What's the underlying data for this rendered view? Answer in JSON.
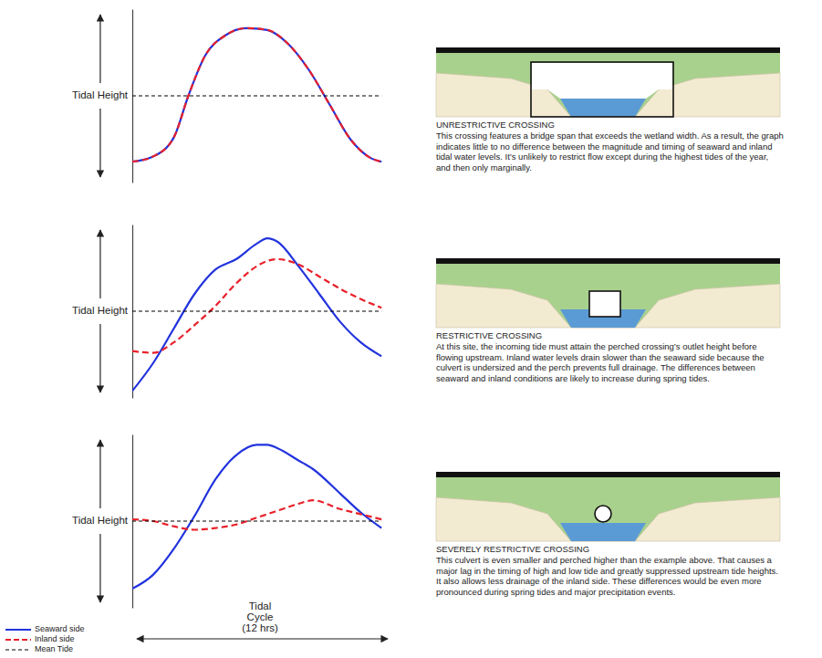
{
  "chart_data": [
    {
      "type": "line",
      "ylabel": "Tidal Height",
      "xlim": [
        0,
        12.3
      ],
      "ylim": [
        -5,
        5
      ],
      "tick_labels": false,
      "x": [
        0,
        1,
        2,
        2.7,
        3.5,
        4.5,
        5.5,
        6.5,
        7.5,
        8.5,
        9.5,
        10.5,
        11.5,
        12
      ],
      "series": [
        {
          "color": "#2233dd",
          "line_style": "solid",
          "values": [
            -3.8,
            -3.5,
            -2.4,
            0,
            2.3,
            3.5,
            3.9,
            3.8,
            3.0,
            1.5,
            -0.5,
            -2.5,
            -3.6,
            -3.8
          ]
        },
        {
          "color": "#e8202a",
          "line_style": "dashed",
          "values": [
            -3.8,
            -3.5,
            -2.4,
            0,
            2.3,
            3.5,
            3.9,
            3.8,
            3.0,
            1.5,
            -0.5,
            -2.5,
            -3.6,
            -3.8
          ]
        },
        {
          "color": "#000000",
          "line_style": "dashed",
          "values": [
            0,
            0,
            0,
            0,
            0,
            0,
            0,
            0,
            0,
            0,
            0,
            0,
            0,
            0
          ]
        }
      ]
    },
    {
      "type": "line",
      "ylabel": "Tidal Height",
      "xlim": [
        0,
        12.3
      ],
      "ylim": [
        -5,
        5
      ],
      "tick_labels": false,
      "x": [
        0,
        1,
        2,
        3,
        4,
        5,
        6,
        6.5,
        7,
        8,
        9,
        10,
        11,
        12
      ],
      "series": [
        {
          "color": "#2233dd",
          "line_style": "solid",
          "values": [
            -4.6,
            -3.0,
            -1.0,
            1.0,
            2.4,
            3.0,
            3.9,
            4.2,
            4.0,
            2.6,
            1.0,
            -0.6,
            -1.8,
            -2.6
          ]
        },
        {
          "color": "#e8202a",
          "line_style": "dashed",
          "values": [
            -2.3,
            -2.4,
            -1.8,
            -0.8,
            0.3,
            1.6,
            2.6,
            2.9,
            3.0,
            2.7,
            2.0,
            1.3,
            0.7,
            0.2
          ]
        },
        {
          "color": "#000000",
          "line_style": "dashed",
          "values": [
            0,
            0,
            0,
            0,
            0,
            0,
            0,
            0,
            0,
            0,
            0,
            0,
            0,
            0
          ]
        }
      ]
    },
    {
      "type": "line",
      "ylabel": "Tidal Height",
      "xlabel": "Tidal Cycle (12 hrs)",
      "legend": "bottom-left",
      "xlim": [
        0,
        12.3
      ],
      "ylim": [
        -5,
        5
      ],
      "tick_labels": false,
      "x": [
        0,
        1,
        2,
        3,
        4,
        5,
        6,
        6.5,
        7,
        8,
        8.7,
        10,
        11,
        12
      ],
      "series": [
        {
          "name": "Seaward side",
          "color": "#2233dd",
          "line_style": "solid",
          "values": [
            -3.9,
            -3.1,
            -1.6,
            0.3,
            2.4,
            3.8,
            4.4,
            4.4,
            4.2,
            3.5,
            3.0,
            1.6,
            0.5,
            -0.4
          ]
        },
        {
          "name": "Inland side",
          "color": "#e8202a",
          "line_style": "dashed",
          "values": [
            0.1,
            0.0,
            -0.3,
            -0.5,
            -0.4,
            -0.2,
            0.2,
            0.4,
            0.6,
            1.0,
            1.2,
            0.7,
            0.4,
            0.1
          ]
        },
        {
          "name": "Mean Tide",
          "color": "#000000",
          "line_style": "dashed",
          "values": [
            0,
            0,
            0,
            0,
            0,
            0,
            0,
            0,
            0,
            0,
            0,
            0,
            0,
            0
          ]
        }
      ]
    }
  ],
  "crossings": [
    {
      "title": "UNRESTRICTIVE CROSSING",
      "text": "This crossing features a bridge span that exceeds the wetland width. As a result, the graph indicates little to no difference between the magnitude and timing of seaward and inland tidal water levels. It’s unlikely to restrict flow except during the highest tides of the year, and then only marginally."
    },
    {
      "title": "RESTRICTIVE CROSSING",
      "text": "At this site, the incoming tide must attain the perched crossing’s outlet height before flowing upstream. Inland water levels drain slower than the seaward side because the culvert is undersized and the perch prevents full drainage. The differences between seaward and inland conditions are likely to increase during spring tides."
    },
    {
      "title": "SEVERELY RESTRICTIVE CROSSING",
      "text": "This culvert is even smaller and perched higher than the example above. That causes a major lag in the timing of high and low tide and greatly suppressed upstream tide heights. It also allows less drainage of the inland side. These differences would be even more pronounced during spring tides and major precipitation events."
    }
  ]
}
